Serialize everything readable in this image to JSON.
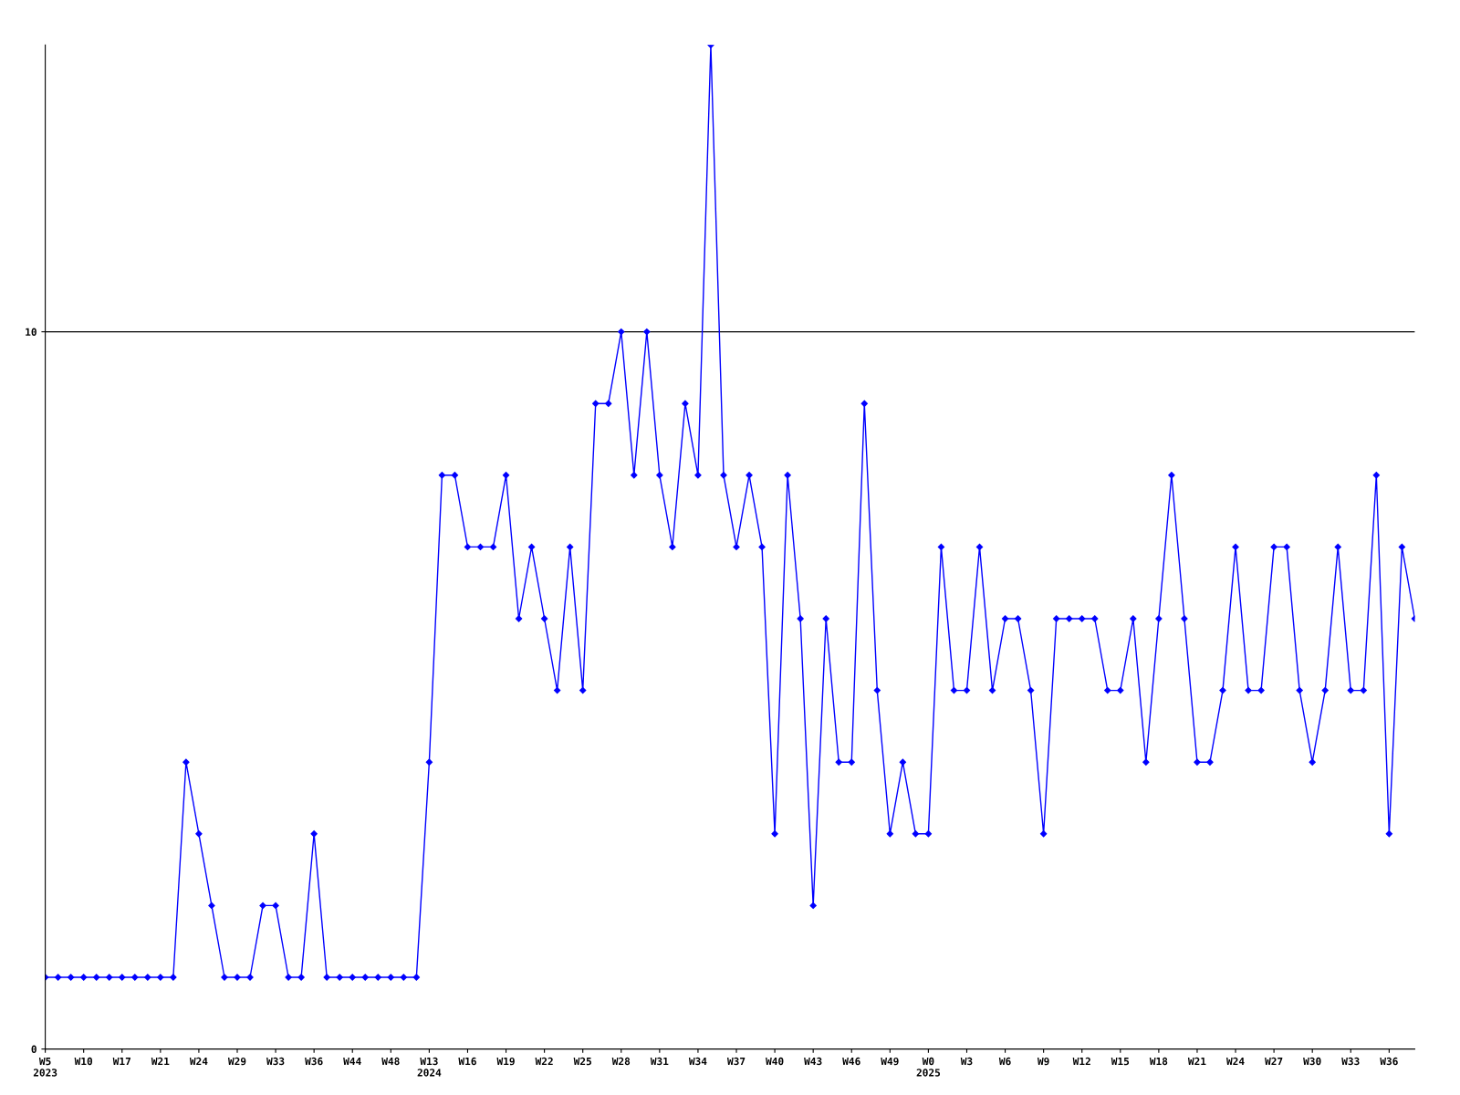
{
  "chart_data": {
    "type": "line",
    "categories": [
      "W5\n2023",
      null,
      null,
      "W10",
      null,
      null,
      "W17",
      null,
      null,
      "W21",
      null,
      null,
      "W24",
      null,
      null,
      "W29",
      null,
      null,
      "W33",
      null,
      null,
      "W36",
      null,
      null,
      "W44",
      null,
      null,
      "W48",
      null,
      null,
      "W13\n2024",
      null,
      null,
      "W16",
      null,
      null,
      "W19",
      null,
      null,
      "W22",
      null,
      null,
      "W25",
      null,
      null,
      "W28",
      null,
      null,
      "W31",
      null,
      null,
      "W34",
      null,
      null,
      "W37",
      null,
      null,
      "W40",
      null,
      null,
      "W43",
      null,
      null,
      "W46",
      null,
      null,
      "W49",
      null,
      null,
      "W0\n2025",
      null,
      null,
      "W3",
      null,
      null,
      "W6",
      null,
      null,
      "W9",
      null,
      null,
      "W12",
      null,
      null,
      "W15",
      null,
      null,
      "W18",
      null,
      null,
      "W21",
      null,
      null,
      "W24",
      null,
      null,
      "W27",
      null,
      null,
      "W30",
      null,
      null,
      "W33",
      null,
      null,
      "W36",
      null,
      null
    ],
    "series": [
      {
        "color": "#0000ff",
        "values": [
          1,
          1,
          1,
          1,
          1,
          1,
          1,
          1,
          1,
          1,
          1,
          4,
          3,
          2,
          1,
          1,
          1,
          2,
          2,
          1,
          1,
          3,
          1,
          1,
          1,
          1,
          1,
          1,
          1,
          1,
          4,
          8,
          8,
          7,
          7,
          7,
          8,
          6,
          7,
          6,
          5,
          7,
          5,
          9,
          9,
          10,
          8,
          10,
          8,
          7,
          9,
          8,
          14,
          8,
          7,
          8,
          7,
          3,
          8,
          6,
          2,
          6,
          4,
          4,
          9,
          5,
          3,
          4,
          3,
          3,
          7,
          5,
          5,
          7,
          5,
          6,
          6,
          5,
          3,
          6,
          6,
          6,
          6,
          5,
          5,
          6,
          4,
          6,
          8,
          6,
          4,
          4,
          5,
          7,
          5,
          5,
          7,
          7,
          5,
          4,
          5,
          7,
          5,
          5,
          8,
          3,
          7,
          6
        ]
      }
    ],
    "ylim": [
      0,
      14
    ],
    "yticks": [
      0,
      10
    ],
    "grid": "y",
    "marker": "diamond",
    "line_style": "solid"
  }
}
